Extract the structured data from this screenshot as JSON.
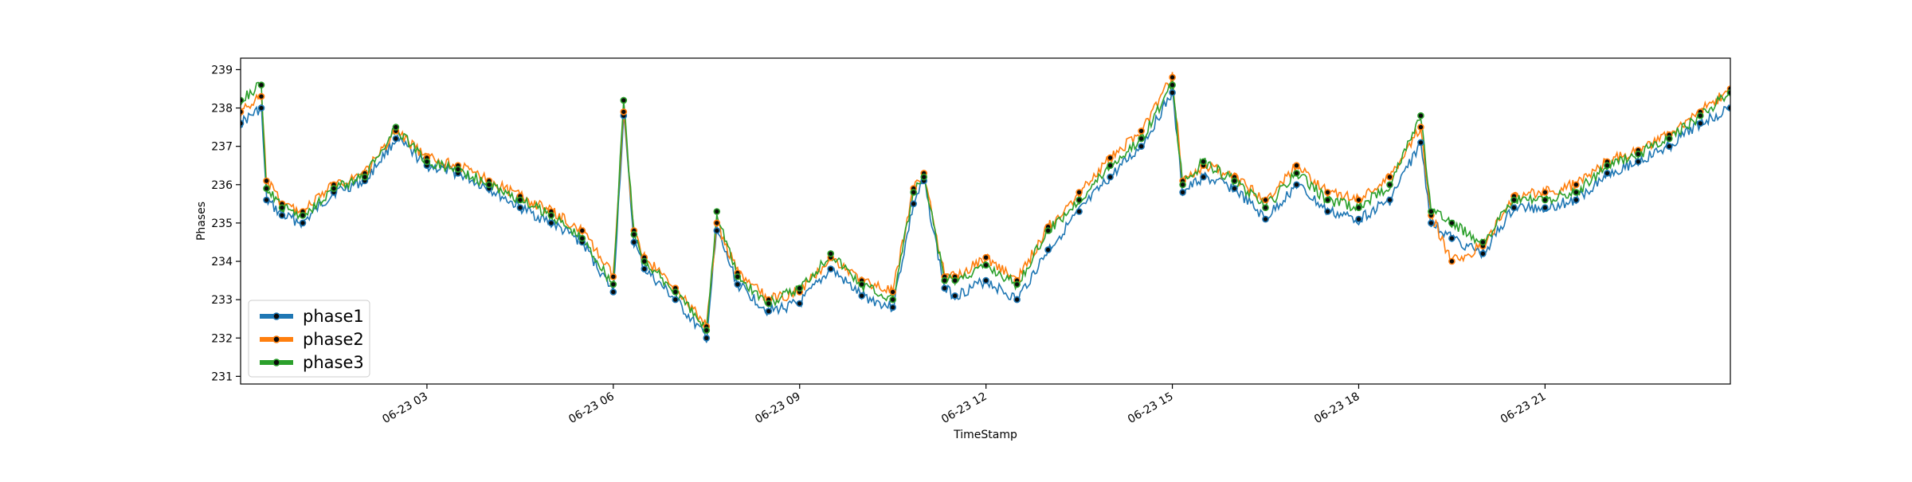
{
  "chart_data": {
    "type": "line",
    "xlabel": "TimeStamp",
    "ylabel": "Phases",
    "x_range": [
      "2023-06-23 00:00",
      "2023-06-23 23:59"
    ],
    "ylim": [
      230.8,
      239.3
    ],
    "x_ticks": [
      {
        "t": "2023-06-23 03:00",
        "label": "06-23 03"
      },
      {
        "t": "2023-06-23 06:00",
        "label": "06-23 06"
      },
      {
        "t": "2023-06-23 09:00",
        "label": "06-23 09"
      },
      {
        "t": "2023-06-23 12:00",
        "label": "06-23 12"
      },
      {
        "t": "2023-06-23 15:00",
        "label": "06-23 15"
      },
      {
        "t": "2023-06-23 18:00",
        "label": "06-23 18"
      },
      {
        "t": "2023-06-23 21:00",
        "label": "06-23 21"
      }
    ],
    "y_ticks": [
      231,
      232,
      233,
      234,
      235,
      236,
      237,
      238,
      239
    ],
    "grid": false,
    "legend": "lower-left",
    "series": [
      {
        "name": "phase1",
        "color": "#1f77b4",
        "x": [
          "2023-06-23 00:00",
          "2023-06-23 00:20",
          "2023-06-23 00:25",
          "2023-06-23 00:40",
          "2023-06-23 01:00",
          "2023-06-23 01:30",
          "2023-06-23 02:00",
          "2023-06-23 02:30",
          "2023-06-23 03:00",
          "2023-06-23 03:30",
          "2023-06-23 04:00",
          "2023-06-23 04:30",
          "2023-06-23 05:00",
          "2023-06-23 05:30",
          "2023-06-23 06:00",
          "2023-06-23 06:10",
          "2023-06-23 06:20",
          "2023-06-23 06:30",
          "2023-06-23 07:00",
          "2023-06-23 07:30",
          "2023-06-23 07:40",
          "2023-06-23 08:00",
          "2023-06-23 08:30",
          "2023-06-23 09:00",
          "2023-06-23 09:30",
          "2023-06-23 10:00",
          "2023-06-23 10:30",
          "2023-06-23 10:50",
          "2023-06-23 11:00",
          "2023-06-23 11:20",
          "2023-06-23 11:30",
          "2023-06-23 12:00",
          "2023-06-23 12:30",
          "2023-06-23 13:00",
          "2023-06-23 13:30",
          "2023-06-23 14:00",
          "2023-06-23 14:30",
          "2023-06-23 15:00",
          "2023-06-23 15:10",
          "2023-06-23 15:30",
          "2023-06-23 16:00",
          "2023-06-23 16:30",
          "2023-06-23 17:00",
          "2023-06-23 17:30",
          "2023-06-23 18:00",
          "2023-06-23 18:30",
          "2023-06-23 19:00",
          "2023-06-23 19:10",
          "2023-06-23 19:30",
          "2023-06-23 20:00",
          "2023-06-23 20:30",
          "2023-06-23 21:00",
          "2023-06-23 21:30",
          "2023-06-23 22:00",
          "2023-06-23 22:30",
          "2023-06-23 23:00",
          "2023-06-23 23:30",
          "2023-06-23 23:59"
        ],
        "values": [
          237.6,
          238.0,
          235.6,
          235.2,
          235.0,
          235.8,
          236.1,
          237.2,
          236.5,
          236.3,
          235.9,
          235.4,
          235.0,
          234.5,
          233.2,
          237.8,
          234.5,
          233.8,
          233.0,
          232.0,
          234.8,
          233.4,
          232.7,
          232.9,
          233.8,
          233.1,
          232.8,
          235.5,
          236.1,
          233.3,
          233.1,
          233.5,
          233.0,
          234.3,
          235.3,
          236.2,
          237.0,
          238.4,
          235.8,
          236.2,
          235.9,
          235.1,
          236.0,
          235.3,
          235.1,
          235.6,
          237.1,
          235.0,
          234.6,
          234.2,
          235.4,
          235.4,
          235.6,
          236.3,
          236.6,
          237.0,
          237.6,
          238.0
        ]
      },
      {
        "name": "phase2",
        "color": "#ff7f0e",
        "x": [
          "2023-06-23 00:00",
          "2023-06-23 00:20",
          "2023-06-23 00:25",
          "2023-06-23 00:40",
          "2023-06-23 01:00",
          "2023-06-23 01:30",
          "2023-06-23 02:00",
          "2023-06-23 02:30",
          "2023-06-23 03:00",
          "2023-06-23 03:30",
          "2023-06-23 04:00",
          "2023-06-23 04:30",
          "2023-06-23 05:00",
          "2023-06-23 05:30",
          "2023-06-23 06:00",
          "2023-06-23 06:10",
          "2023-06-23 06:20",
          "2023-06-23 06:30",
          "2023-06-23 07:00",
          "2023-06-23 07:30",
          "2023-06-23 07:40",
          "2023-06-23 08:00",
          "2023-06-23 08:30",
          "2023-06-23 09:00",
          "2023-06-23 09:30",
          "2023-06-23 10:00",
          "2023-06-23 10:30",
          "2023-06-23 10:50",
          "2023-06-23 11:00",
          "2023-06-23 11:20",
          "2023-06-23 11:30",
          "2023-06-23 12:00",
          "2023-06-23 12:30",
          "2023-06-23 13:00",
          "2023-06-23 13:30",
          "2023-06-23 14:00",
          "2023-06-23 14:30",
          "2023-06-23 15:00",
          "2023-06-23 15:10",
          "2023-06-23 15:30",
          "2023-06-23 16:00",
          "2023-06-23 16:30",
          "2023-06-23 17:00",
          "2023-06-23 17:30",
          "2023-06-23 18:00",
          "2023-06-23 18:30",
          "2023-06-23 19:00",
          "2023-06-23 19:10",
          "2023-06-23 19:30",
          "2023-06-23 20:00",
          "2023-06-23 20:30",
          "2023-06-23 21:00",
          "2023-06-23 21:30",
          "2023-06-23 22:00",
          "2023-06-23 22:30",
          "2023-06-23 23:00",
          "2023-06-23 23:30",
          "2023-06-23 23:59"
        ],
        "values": [
          237.9,
          238.3,
          236.1,
          235.5,
          235.3,
          236.0,
          236.3,
          237.4,
          236.7,
          236.5,
          236.1,
          235.7,
          235.3,
          234.8,
          233.6,
          237.9,
          234.8,
          234.1,
          233.3,
          232.3,
          235.0,
          233.7,
          233.0,
          233.2,
          234.1,
          233.5,
          233.2,
          235.9,
          236.3,
          233.6,
          233.6,
          234.1,
          233.5,
          234.9,
          235.8,
          236.7,
          237.4,
          238.8,
          236.1,
          236.5,
          236.2,
          235.6,
          236.5,
          235.8,
          235.6,
          236.2,
          237.5,
          235.2,
          234.0,
          234.4,
          235.7,
          235.8,
          236.0,
          236.6,
          236.9,
          237.3,
          237.9,
          238.5
        ]
      },
      {
        "name": "phase3",
        "color": "#2ca02c",
        "x": [
          "2023-06-23 00:00",
          "2023-06-23 00:20",
          "2023-06-23 00:25",
          "2023-06-23 00:40",
          "2023-06-23 01:00",
          "2023-06-23 01:30",
          "2023-06-23 02:00",
          "2023-06-23 02:30",
          "2023-06-23 03:00",
          "2023-06-23 03:30",
          "2023-06-23 04:00",
          "2023-06-23 04:30",
          "2023-06-23 05:00",
          "2023-06-23 05:30",
          "2023-06-23 06:00",
          "2023-06-23 06:10",
          "2023-06-23 06:20",
          "2023-06-23 06:30",
          "2023-06-23 07:00",
          "2023-06-23 07:30",
          "2023-06-23 07:40",
          "2023-06-23 08:00",
          "2023-06-23 08:30",
          "2023-06-23 09:00",
          "2023-06-23 09:30",
          "2023-06-23 10:00",
          "2023-06-23 10:30",
          "2023-06-23 10:50",
          "2023-06-23 11:00",
          "2023-06-23 11:20",
          "2023-06-23 11:30",
          "2023-06-23 12:00",
          "2023-06-23 12:30",
          "2023-06-23 13:00",
          "2023-06-23 13:30",
          "2023-06-23 14:00",
          "2023-06-23 14:30",
          "2023-06-23 15:00",
          "2023-06-23 15:10",
          "2023-06-23 15:30",
          "2023-06-23 16:00",
          "2023-06-23 16:30",
          "2023-06-23 17:00",
          "2023-06-23 17:30",
          "2023-06-23 18:00",
          "2023-06-23 18:30",
          "2023-06-23 19:00",
          "2023-06-23 19:10",
          "2023-06-23 19:30",
          "2023-06-23 20:00",
          "2023-06-23 20:30",
          "2023-06-23 21:00",
          "2023-06-23 21:30",
          "2023-06-23 22:00",
          "2023-06-23 22:30",
          "2023-06-23 23:00",
          "2023-06-23 23:30",
          "2023-06-23 23:59"
        ],
        "values": [
          238.2,
          238.6,
          235.9,
          235.4,
          235.2,
          235.9,
          236.2,
          237.5,
          236.6,
          236.4,
          236.0,
          235.6,
          235.2,
          234.6,
          233.4,
          238.2,
          234.7,
          234.0,
          233.2,
          232.2,
          235.3,
          233.6,
          232.9,
          233.3,
          234.2,
          233.4,
          233.0,
          235.8,
          236.2,
          233.5,
          233.5,
          233.9,
          233.4,
          234.8,
          235.6,
          236.5,
          237.2,
          238.6,
          236.0,
          236.6,
          236.1,
          235.4,
          236.3,
          235.6,
          235.4,
          236.0,
          237.8,
          235.3,
          235.0,
          234.5,
          235.6,
          235.6,
          235.8,
          236.5,
          236.8,
          237.2,
          237.8,
          238.4
        ]
      }
    ]
  }
}
